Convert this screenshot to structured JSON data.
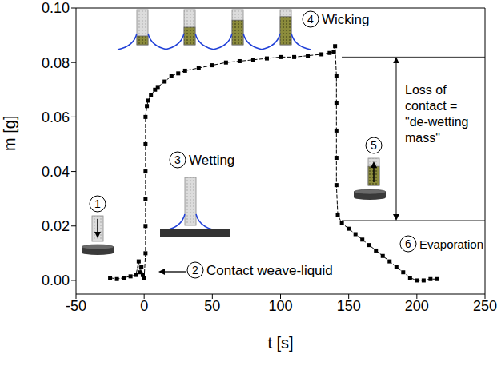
{
  "chart_data": {
    "type": "line",
    "x_label": "t [s]",
    "y_label": "m [g]",
    "x": [
      -25,
      -20,
      -15,
      -10,
      -6,
      -4,
      -3,
      -2,
      -1,
      0,
      1,
      1,
      1,
      1,
      1,
      1,
      2,
      3,
      5,
      8,
      10,
      15,
      20,
      25,
      30,
      40,
      50,
      60,
      70,
      80,
      90,
      100,
      110,
      120,
      130,
      136,
      139,
      140,
      141,
      141,
      141,
      141,
      141,
      142,
      145,
      150,
      155,
      160,
      165,
      170,
      175,
      180,
      185,
      190,
      195,
      200,
      205,
      210,
      215
    ],
    "values": [
      0.001,
      0.0005,
      0.001,
      0.0015,
      0.002,
      0.007,
      0.003,
      0.005,
      0.002,
      0.001,
      0.01,
      0.02,
      0.03,
      0.04,
      0.05,
      0.06,
      0.064,
      0.066,
      0.068,
      0.07,
      0.071,
      0.073,
      0.075,
      0.076,
      0.077,
      0.078,
      0.079,
      0.08,
      0.0805,
      0.081,
      0.0815,
      0.082,
      0.082,
      0.0825,
      0.083,
      0.0835,
      0.084,
      0.086,
      0.075,
      0.065,
      0.055,
      0.045,
      0.035,
      0.024,
      0.021,
      0.019,
      0.017,
      0.015,
      0.013,
      0.011,
      0.009,
      0.007,
      0.005,
      0.003,
      0.001,
      0.0,
      0.0,
      0.0005,
      0.0005
    ],
    "color": "#000000",
    "marker": "square",
    "line_style": "dashed",
    "xlim": [
      -50,
      250
    ],
    "xticks": [
      -50,
      0,
      50,
      100,
      150,
      200,
      250
    ],
    "ylim": [
      -0.005,
      0.1
    ],
    "yticks": [
      {
        "value": 0,
        "label": "0.00"
      },
      {
        "value": 0.02,
        "label": "0.02"
      },
      {
        "value": 0.04,
        "label": "0.04"
      },
      {
        "value": 0.06,
        "label": "0.06"
      },
      {
        "value": 0.08,
        "label": "0.08"
      },
      {
        "value": 0.1,
        "label": "0.10"
      }
    ],
    "annotations": [
      {
        "step": 1
      },
      {
        "step": 2,
        "text": "Contact weave-liquid"
      },
      {
        "step": 3,
        "text": "Wetting"
      },
      {
        "step": 4,
        "text": "Wicking"
      },
      {
        "step": 5
      },
      {
        "step": 6,
        "text": "Evaporation"
      }
    ],
    "de_wetting": {
      "from": 0.082,
      "to": 0.022,
      "text": "Loss of contact = \"de-wetting mass\""
    }
  }
}
